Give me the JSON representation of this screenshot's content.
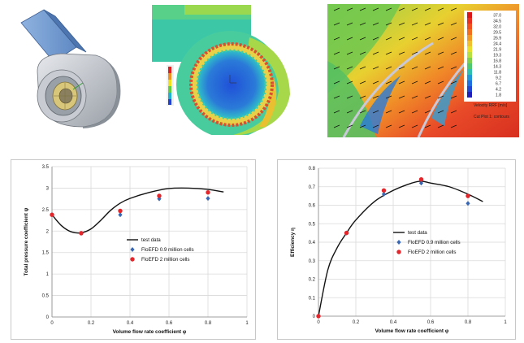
{
  "images": {
    "cad_model": {
      "description": "fan-housing-3d-model"
    },
    "cfd_full": {
      "legend_ticks": [
        "",
        "",
        "",
        "",
        "",
        "",
        ""
      ]
    },
    "cfd_zoom": {
      "legend_title": "Velocity RRF [m/s]",
      "legend_values": [
        "37.0",
        "34.5",
        "32.0",
        "29.5",
        "26.9",
        "24.4",
        "21.9",
        "19.3",
        "16.8",
        "14.3",
        "11.8",
        "9.2",
        "6.7",
        "4.2",
        "1.8"
      ],
      "caption": "Cut Plot 1: contours"
    }
  },
  "colors": {
    "test_line": "#111111",
    "floefd_09": "#3a67b4",
    "floefd_2": "#e3262b",
    "grid": "#d9d9d9"
  },
  "chart_data": [
    {
      "type": "line",
      "title": "",
      "xlabel": "Volume flow rate coefficient φ",
      "ylabel": "Total pressure coefficient ψ",
      "xlim": [
        0,
        1
      ],
      "ylim": [
        0,
        3.5
      ],
      "xticks": [
        "0",
        "0.2",
        "0.4",
        "0.6",
        "0.8",
        "1"
      ],
      "yticks": [
        "0",
        "0.5",
        "1",
        "1.5",
        "2",
        "2.5",
        "3",
        "3.5"
      ],
      "legend_position": "bottom-right",
      "series": [
        {
          "name": "test data",
          "kind": "line",
          "x": [
            0,
            0.05,
            0.1,
            0.15,
            0.2,
            0.25,
            0.3,
            0.35,
            0.4,
            0.5,
            0.6,
            0.7,
            0.8,
            0.88
          ],
          "y": [
            2.38,
            2.12,
            1.98,
            1.96,
            2.05,
            2.25,
            2.48,
            2.65,
            2.76,
            2.9,
            2.99,
            3.0,
            2.97,
            2.91
          ]
        },
        {
          "name": "FloEFD 0.9 million cells",
          "kind": "diamond",
          "x": [
            0,
            0.15,
            0.35,
            0.55,
            0.8
          ],
          "y": [
            2.38,
            1.95,
            2.38,
            2.75,
            2.76
          ]
        },
        {
          "name": "FloEFD 2 million cells",
          "kind": "circle",
          "x": [
            0,
            0.15,
            0.35,
            0.55,
            0.8
          ],
          "y": [
            2.38,
            1.95,
            2.47,
            2.82,
            2.9
          ]
        }
      ]
    },
    {
      "type": "line",
      "title": "",
      "xlabel": "Volume flow rate coefficient φ",
      "ylabel": "Efficiency η",
      "xlim": [
        0,
        1
      ],
      "ylim": [
        0,
        0.8
      ],
      "xticks": [
        "0",
        "0.2",
        "0.4",
        "0.6",
        "0.8",
        "1"
      ],
      "yticks": [
        "0",
        "0.1",
        "0.2",
        "0.3",
        "0.4",
        "0.5",
        "0.6",
        "0.7",
        "0.8"
      ],
      "legend_position": "bottom-right",
      "series": [
        {
          "name": "test data",
          "kind": "line",
          "x": [
            0,
            0.05,
            0.1,
            0.15,
            0.2,
            0.3,
            0.4,
            0.5,
            0.55,
            0.6,
            0.7,
            0.8,
            0.88
          ],
          "y": [
            0,
            0.25,
            0.37,
            0.45,
            0.52,
            0.62,
            0.68,
            0.72,
            0.73,
            0.72,
            0.7,
            0.66,
            0.62
          ]
        },
        {
          "name": "FloEFD 0.9 million cells",
          "kind": "diamond",
          "x": [
            0,
            0.15,
            0.35,
            0.55,
            0.8
          ],
          "y": [
            0,
            0.45,
            0.66,
            0.72,
            0.61
          ]
        },
        {
          "name": "FloEFD 2 million cells",
          "kind": "circle",
          "x": [
            0,
            0.15,
            0.35,
            0.55,
            0.8
          ],
          "y": [
            0,
            0.45,
            0.68,
            0.74,
            0.65
          ]
        }
      ]
    }
  ]
}
